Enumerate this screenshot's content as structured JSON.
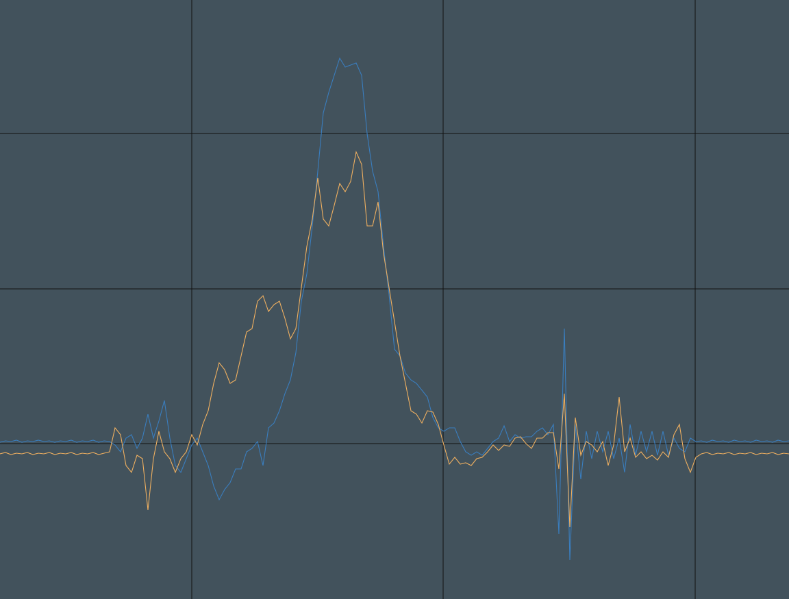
{
  "chart_data": {
    "type": "line",
    "background": "#42525c",
    "grid": true,
    "grid_color": "#111111",
    "xlim": [
      0,
      1152
    ],
    "ylim": [
      -227,
      648
    ],
    "xticks": [
      280,
      647,
      1015
    ],
    "yticks": [
      0,
      226,
      453
    ],
    "x": [
      0,
      8,
      16,
      24,
      32,
      40,
      48,
      56,
      64,
      72,
      80,
      88,
      96,
      104,
      112,
      120,
      128,
      136,
      144,
      152,
      160,
      168,
      176,
      184,
      192,
      200,
      208,
      216,
      224,
      232,
      240,
      248,
      256,
      264,
      272,
      280,
      288,
      296,
      304,
      312,
      320,
      328,
      336,
      344,
      352,
      360,
      368,
      376,
      384,
      392,
      400,
      408,
      416,
      424,
      432,
      440,
      448,
      456,
      464,
      472,
      480,
      488,
      496,
      504,
      512,
      520,
      528,
      536,
      544,
      552,
      560,
      568,
      576,
      584,
      592,
      600,
      608,
      616,
      624,
      632,
      640,
      648,
      656,
      664,
      672,
      680,
      688,
      696,
      704,
      712,
      720,
      728,
      736,
      744,
      752,
      760,
      768,
      776,
      784,
      792,
      800,
      808,
      816,
      824,
      832,
      840,
      848,
      856,
      864,
      872,
      880,
      888,
      896,
      904,
      912,
      920,
      928,
      936,
      944,
      952,
      960,
      968,
      976,
      984,
      992,
      1000,
      1008,
      1016,
      1024,
      1032,
      1040,
      1048,
      1056,
      1064,
      1072,
      1080,
      1088,
      1096,
      1104,
      1112,
      1120,
      1128,
      1136,
      1144,
      1152
    ],
    "series": [
      {
        "color": "#3a7ebf",
        "values": [
          2,
          4,
          3,
          5,
          2,
          4,
          3,
          5,
          3,
          4,
          2,
          4,
          3,
          5,
          2,
          4,
          3,
          5,
          2,
          4,
          3,
          -2,
          -12,
          8,
          13,
          -7,
          8,
          43,
          8,
          33,
          63,
          8,
          -32,
          -42,
          -22,
          -2,
          8,
          -12,
          -32,
          -62,
          -82,
          -67,
          -57,
          -37,
          -37,
          -12,
          -7,
          3,
          -32,
          23,
          30,
          48,
          73,
          93,
          133,
          208,
          248,
          318,
          398,
          483,
          513,
          538,
          563,
          550,
          553,
          556,
          538,
          453,
          398,
          368,
          288,
          218,
          138,
          128,
          103,
          93,
          88,
          78,
          68,
          38,
          23,
          18,
          23,
          23,
          3,
          -12,
          -17,
          -12,
          -17,
          -7,
          3,
          8,
          26,
          3,
          13,
          8,
          10,
          10,
          18,
          23,
          13,
          28,
          -132,
          168,
          -170,
          28,
          -52,
          18,
          -22,
          18,
          -12,
          18,
          -22,
          8,
          -42,
          28,
          -17,
          18,
          -12,
          18,
          -17,
          18,
          -17,
          8,
          -7,
          -12,
          8,
          3,
          4,
          2,
          5,
          3,
          4,
          2,
          5,
          3,
          4,
          2,
          5,
          3,
          4,
          2,
          5,
          3,
          4
        ]
      },
      {
        "color": "#f0b060",
        "values": [
          -15,
          -13,
          -16,
          -14,
          -15,
          -13,
          -16,
          -14,
          -15,
          -13,
          -16,
          -14,
          -15,
          -13,
          -16,
          -14,
          -15,
          -13,
          -16,
          -14,
          -12,
          23,
          13,
          -32,
          -42,
          -17,
          -22,
          -97,
          -22,
          18,
          -12,
          -22,
          -42,
          -22,
          -12,
          13,
          -2,
          28,
          48,
          88,
          118,
          108,
          88,
          93,
          128,
          163,
          168,
          208,
          216,
          193,
          203,
          208,
          183,
          153,
          168,
          228,
          288,
          328,
          388,
          328,
          318,
          348,
          380,
          368,
          383,
          426,
          408,
          318,
          318,
          353,
          278,
          228,
          178,
          128,
          88,
          48,
          43,
          30,
          48,
          46,
          28,
          -2,
          -30,
          -20,
          -30,
          -28,
          -32,
          -22,
          -20,
          -12,
          -2,
          -10,
          -2,
          -4,
          8,
          10,
          0,
          -7,
          8,
          8,
          16,
          16,
          -37,
          73,
          -122,
          38,
          -17,
          3,
          -2,
          -12,
          3,
          -32,
          -2,
          68,
          -12,
          8,
          -20,
          -12,
          -22,
          -17,
          -24,
          -12,
          -20,
          13,
          28,
          -22,
          -42,
          -20,
          -15,
          -13,
          -16,
          -14,
          -15,
          -13,
          -16,
          -14,
          -15,
          -13,
          -16,
          -14,
          -15,
          -13,
          -16,
          -14,
          -15
        ]
      }
    ]
  }
}
